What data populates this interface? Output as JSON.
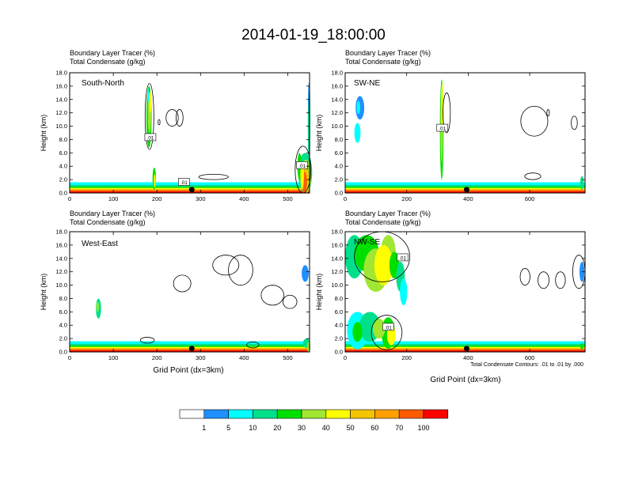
{
  "figure_title": "2014-01-19_18:00:00",
  "header_line1": "Boundary Layer Tracer    (%)",
  "header_line2": "Total Condensate    (g/kg)",
  "y_axis_label": "Height (km)",
  "x_axis_label": "Grid Point (dx=3km)",
  "contour_note": "Total Condensate Contours: .01 to .01 by .000",
  "colorbar": {
    "colors": [
      "#ffffff",
      "#1e90ff",
      "#00ffff",
      "#00e08a",
      "#00e000",
      "#a0e632",
      "#ffff00",
      "#f5c400",
      "#ffa000",
      "#ff5a00",
      "#ff0000"
    ],
    "labels": [
      "1",
      "5",
      "10",
      "20",
      "30",
      "40",
      "50",
      "60",
      "70",
      "100"
    ]
  },
  "chart_data": [
    {
      "type": "heatmap",
      "name": "South-North",
      "xlim": [
        0,
        550
      ],
      "ylim": [
        0,
        18
      ],
      "xticks": [
        "0",
        "100",
        "200",
        "300",
        "400",
        "500"
      ],
      "yticks": [
        "0.0",
        "2.0",
        "4.0",
        "6.0",
        "8.0",
        "10.0",
        "12.0",
        "14.0",
        "16.0",
        "18.0"
      ],
      "contour_labels": [
        ".01",
        ".01",
        ".01"
      ],
      "marker_x": 280
    },
    {
      "type": "heatmap",
      "name": "SW-NE",
      "xlim": [
        0,
        780
      ],
      "ylim": [
        0,
        18
      ],
      "xticks": [
        "0",
        "200",
        "400",
        "600"
      ],
      "yticks": [
        "0.0",
        "2.0",
        "4.0",
        "6.0",
        "8.0",
        "10.0",
        "12.0",
        "14.0",
        "16.0",
        "18.0"
      ],
      "contour_labels": [
        ".01"
      ],
      "marker_x": 395
    },
    {
      "type": "heatmap",
      "name": "West-East",
      "xlim": [
        0,
        550
      ],
      "ylim": [
        0,
        18
      ],
      "xticks": [
        "0",
        "100",
        "200",
        "300",
        "400",
        "500"
      ],
      "yticks": [
        "0.0",
        "2.0",
        "4.0",
        "6.0",
        "8.0",
        "10.0",
        "12.0",
        "14.0",
        "16.0",
        "18.0"
      ],
      "contour_labels": [],
      "marker_x": 280
    },
    {
      "type": "heatmap",
      "name": "NW-SE",
      "xlim": [
        0,
        780
      ],
      "ylim": [
        0,
        18
      ],
      "xticks": [
        "0",
        "200",
        "400",
        "600"
      ],
      "yticks": [
        "0.0",
        "2.0",
        "4.0",
        "6.0",
        "8.0",
        "10.0",
        "12.0",
        "14.0",
        "16.0",
        "18.0"
      ],
      "contour_labels": [
        ".01",
        ".01"
      ],
      "marker_x": 395
    }
  ]
}
